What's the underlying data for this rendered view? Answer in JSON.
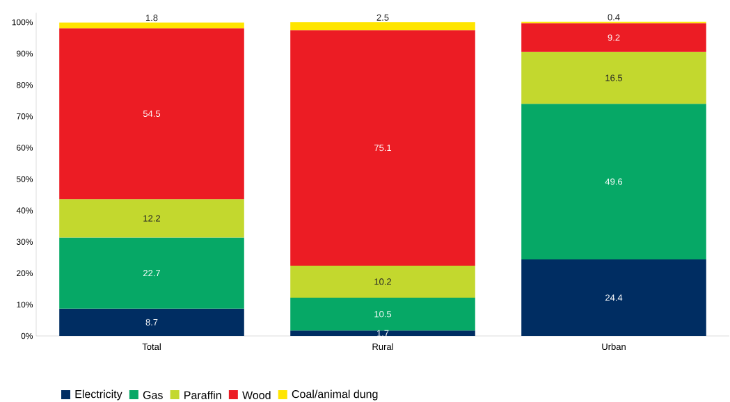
{
  "chart_data": {
    "type": "bar",
    "stacked": true,
    "categories": [
      "Total",
      "Rural",
      "Urban"
    ],
    "series": [
      {
        "name": "Electricity",
        "color": "#002d62",
        "values": [
          8.7,
          1.7,
          24.4
        ]
      },
      {
        "name": "Gas",
        "color": "#06a866",
        "values": [
          22.7,
          10.5,
          49.6
        ]
      },
      {
        "name": "Paraffin",
        "color": "#c3d82e",
        "values": [
          12.2,
          10.2,
          16.5
        ]
      },
      {
        "name": "Wood",
        "color": "#ec1c24",
        "values": [
          54.5,
          75.1,
          9.2
        ]
      },
      {
        "name": "Coal/animal dung",
        "color": "#ffe500",
        "values": [
          1.8,
          2.5,
          0.4
        ]
      }
    ],
    "ylim": [
      0,
      103
    ],
    "yticks": [
      {
        "value": 0,
        "label": "0%"
      },
      {
        "value": 10,
        "label": "10%"
      },
      {
        "value": 20,
        "label": "20%"
      },
      {
        "value": 30,
        "label": "30%"
      },
      {
        "value": 40,
        "label": "40%"
      },
      {
        "value": 50,
        "label": "50%"
      },
      {
        "value": 60,
        "label": "60%"
      },
      {
        "value": 70,
        "label": "70%"
      },
      {
        "value": 80,
        "label": "80%"
      },
      {
        "value": 90,
        "label": "90%"
      },
      {
        "value": 100,
        "label": "100%"
      }
    ],
    "data_labels": true,
    "legend": "bottom",
    "grid": false
  }
}
